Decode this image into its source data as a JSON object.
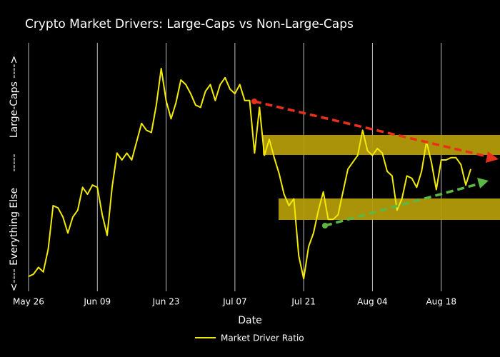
{
  "chart_data": {
    "type": "line",
    "title": "Crypto Market Drivers: Large-Caps vs Non-Large-Caps",
    "x_label": "Date",
    "y_label": "<---- Everything Else     -----     Large-Caps ---->",
    "categories": [
      "May 26",
      null,
      null,
      null,
      null,
      null,
      null,
      null,
      null,
      null,
      null,
      null,
      null,
      null,
      "Jun 09",
      null,
      null,
      null,
      null,
      null,
      null,
      null,
      null,
      null,
      null,
      null,
      null,
      null,
      "Jun 23",
      null,
      null,
      null,
      null,
      null,
      null,
      null,
      null,
      null,
      null,
      null,
      null,
      null,
      "Jul 07",
      null,
      null,
      null,
      null,
      null,
      null,
      null,
      null,
      null,
      null,
      null,
      null,
      null,
      "Jul 21",
      null,
      null,
      null,
      null,
      null,
      null,
      null,
      null,
      null,
      null,
      null,
      null,
      null,
      "Aug 04",
      null,
      null,
      null,
      null,
      null,
      null,
      null,
      null,
      null,
      null,
      null,
      null,
      null,
      "Aug 18",
      null,
      null,
      null,
      null,
      null,
      null
    ],
    "series": [
      {
        "name": "Market Driver Ratio",
        "color": "#f2ea00",
        "values": [
          4,
          5,
          8,
          6,
          16,
          35,
          34,
          30,
          23,
          30,
          33,
          43,
          40,
          44,
          43,
          31,
          22,
          43,
          58,
          55,
          58,
          55,
          63,
          71,
          68,
          67,
          79,
          95,
          81,
          73,
          80,
          90,
          88,
          84,
          79,
          78,
          85,
          88,
          81,
          88,
          91,
          86,
          84,
          88,
          81,
          81,
          58,
          78,
          57,
          64,
          56,
          49,
          40,
          35,
          38,
          13,
          3,
          17,
          23,
          33,
          41,
          29,
          29,
          31,
          41,
          51,
          54,
          57,
          68,
          59,
          57,
          60,
          58,
          50,
          48,
          33,
          38,
          48,
          47,
          43,
          50,
          63,
          54,
          42,
          55,
          55,
          56,
          56,
          53,
          44,
          51
        ]
      }
    ],
    "ylim": [
      0,
      100
    ],
    "grid": true
  }
}
